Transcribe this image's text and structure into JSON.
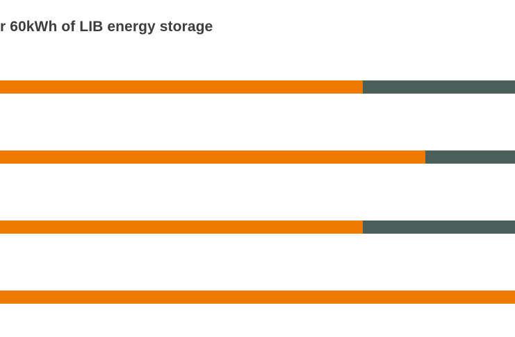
{
  "chart_data": {
    "type": "bar",
    "orientation": "horizontal",
    "stacked": true,
    "title": "r 60kWh of LIB energy storage",
    "categories": [
      "",
      "",
      "",
      ""
    ],
    "series": [
      {
        "values": [
          522,
          612,
          522,
          741
        ]
      },
      {
        "values": [
          219,
          129,
          219,
          0
        ]
      }
    ],
    "colors": [
      "#ee7b00",
      "#4a5f5a"
    ],
    "xlim": [
      0,
      741
    ],
    "grid": false,
    "legend": "none"
  }
}
